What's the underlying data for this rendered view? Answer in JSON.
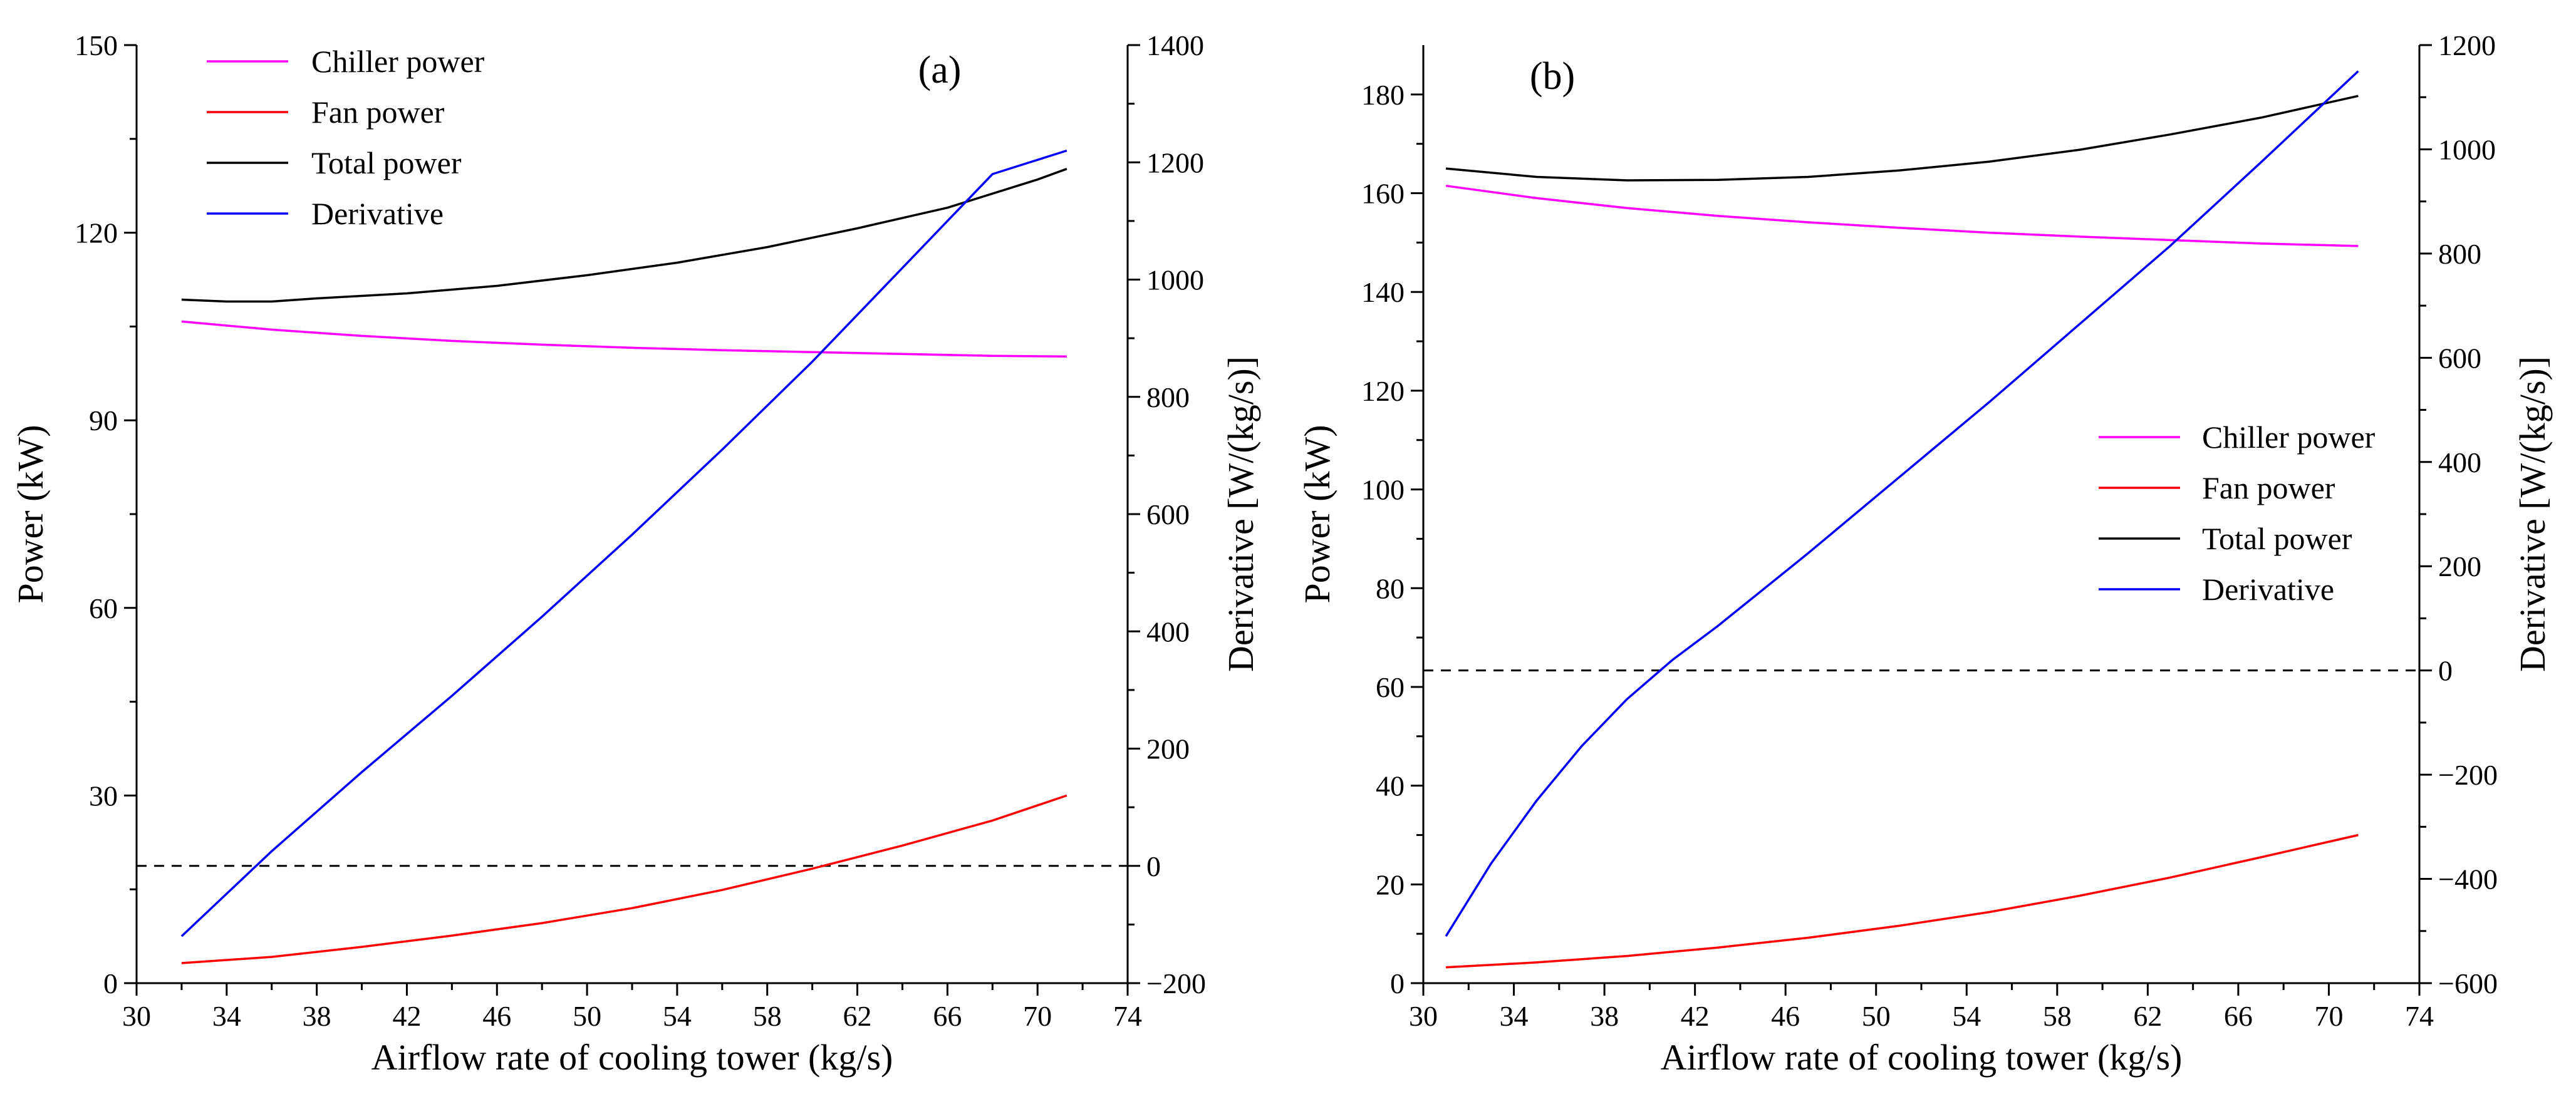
{
  "chart_data": [
    {
      "type": "line",
      "panel_label": "(a)",
      "xlabel": "Airflow rate of cooling tower (kg/s)",
      "ylabel": "Power (kW)",
      "y2label": "Derivative [W/(kg/s)]",
      "xlim": [
        30,
        74
      ],
      "xticks": [
        30,
        34,
        38,
        42,
        46,
        50,
        54,
        58,
        62,
        66,
        70,
        74
      ],
      "ylim": [
        0,
        150
      ],
      "yticks": [
        0,
        30,
        60,
        90,
        120,
        150
      ],
      "y2lim": [
        -200,
        1400
      ],
      "y2ticks": [
        -200,
        0,
        200,
        400,
        600,
        800,
        1000,
        1200,
        1400
      ],
      "legend_position": "top-left",
      "zero_reference": {
        "axis": "right",
        "value": 0,
        "style": "dashed"
      },
      "series": [
        {
          "name": "Chiller power",
          "axis": "left",
          "color": "#ff00ff",
          "x": [
            32,
            36,
            40,
            44,
            48,
            52,
            56,
            60,
            64,
            68,
            71.3
          ],
          "values": [
            105.8,
            104.5,
            103.5,
            102.7,
            102.1,
            101.6,
            101.2,
            100.9,
            100.6,
            100.3,
            100.2
          ]
        },
        {
          "name": "Fan power",
          "axis": "left",
          "color": "#ff0000",
          "x": [
            32,
            36,
            40,
            44,
            48,
            52,
            56,
            60,
            64,
            68,
            71.3
          ],
          "values": [
            3.2,
            4.2,
            5.8,
            7.6,
            9.6,
            12.0,
            14.9,
            18.3,
            22.0,
            26.0,
            30.0
          ]
        },
        {
          "name": "Total power",
          "axis": "left",
          "color": "#000000",
          "x": [
            32,
            34,
            36,
            38,
            42,
            46,
            50,
            54,
            58,
            62,
            66,
            70,
            71.3
          ],
          "values": [
            109.3,
            109.0,
            109.0,
            109.5,
            110.3,
            111.5,
            113.2,
            115.2,
            117.7,
            120.7,
            124.0,
            128.5,
            130.2
          ]
        },
        {
          "name": "Derivative",
          "axis": "right",
          "color": "#0000ff",
          "x": [
            32,
            36,
            40,
            44,
            48,
            52,
            56,
            60,
            64,
            68,
            71.3
          ],
          "values": [
            -120,
            25,
            160,
            290,
            425,
            565,
            710,
            860,
            1020,
            1180,
            1220
          ]
        }
      ]
    },
    {
      "type": "line",
      "panel_label": "(b)",
      "xlabel": "Airflow rate of cooling tower (kg/s)",
      "ylabel": "Power (kW)",
      "y2label": "Derivative [W/(kg/s)]",
      "xlim": [
        30,
        74
      ],
      "xticks": [
        30,
        34,
        38,
        42,
        46,
        50,
        54,
        58,
        62,
        66,
        70,
        74
      ],
      "ylim": [
        0,
        190
      ],
      "yticks": [
        0,
        20,
        40,
        60,
        80,
        100,
        120,
        140,
        160,
        180
      ],
      "y2lim": [
        -600,
        1200
      ],
      "y2ticks": [
        -600,
        -400,
        -200,
        0,
        200,
        400,
        600,
        800,
        1000,
        1200
      ],
      "legend_position": "center-right",
      "zero_reference": {
        "axis": "right",
        "value": 0,
        "style": "dashed"
      },
      "series": [
        {
          "name": "Chiller power",
          "axis": "left",
          "color": "#ff00ff",
          "x": [
            31,
            35,
            39,
            43,
            47,
            51,
            55,
            59,
            63,
            67,
            71.3
          ],
          "values": [
            161.5,
            159.0,
            157.0,
            155.4,
            154.1,
            153.0,
            152.0,
            151.2,
            150.5,
            149.8,
            149.3
          ]
        },
        {
          "name": "Fan power",
          "axis": "left",
          "color": "#ff0000",
          "x": [
            31,
            35,
            39,
            43,
            47,
            51,
            55,
            59,
            63,
            67,
            71.3
          ],
          "values": [
            3.2,
            4.2,
            5.5,
            7.2,
            9.2,
            11.6,
            14.4,
            17.7,
            21.4,
            25.5,
            30.0
          ]
        },
        {
          "name": "Total power",
          "axis": "left",
          "color": "#000000",
          "x": [
            31,
            35,
            39,
            43,
            47,
            51,
            55,
            59,
            63,
            67,
            71.3
          ],
          "values": [
            165.0,
            163.3,
            162.6,
            162.7,
            163.3,
            164.6,
            166.4,
            168.8,
            171.9,
            175.3,
            179.7
          ]
        },
        {
          "name": "Derivative",
          "axis": "right",
          "color": "#0000ff",
          "x": [
            31,
            33,
            35,
            37,
            39,
            41,
            43,
            47,
            51,
            55,
            59,
            63,
            67,
            71.3
          ],
          "values": [
            -510,
            -370,
            -250,
            -145,
            -55,
            20,
            85,
            225,
            370,
            515,
            665,
            815,
            975,
            1150
          ]
        }
      ]
    }
  ]
}
